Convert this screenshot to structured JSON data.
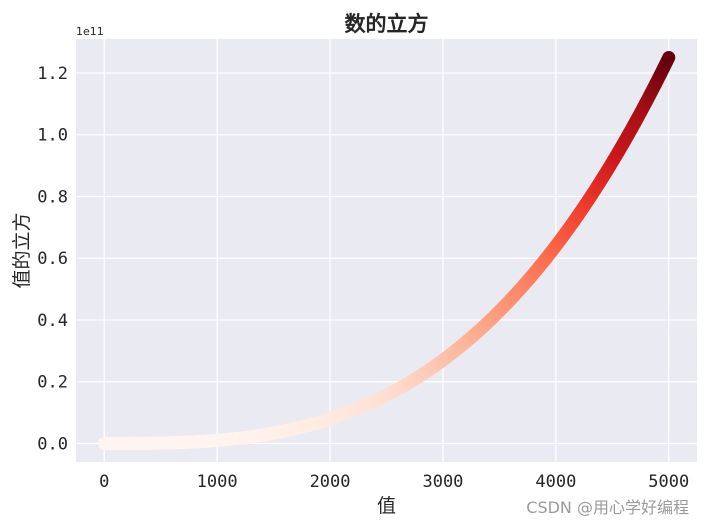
{
  "chart_data": {
    "type": "scatter",
    "title": "数的立方",
    "xlabel": "值",
    "ylabel": "值的立方",
    "y_offset_text": "1e11",
    "xlim": [
      -250,
      5250
    ],
    "ylim": [
      -0.06,
      1.31
    ],
    "y_scale_factor": 100000000000,
    "x_ticks": [
      0,
      1000,
      2000,
      3000,
      4000,
      5000
    ],
    "x_tick_labels": [
      "0",
      "1000",
      "2000",
      "3000",
      "4000",
      "5000"
    ],
    "y_ticks": [
      0.0,
      0.2,
      0.4,
      0.6,
      0.8,
      1.0,
      1.2
    ],
    "y_tick_labels": [
      "0.0",
      "0.2",
      "0.4",
      "0.6",
      "0.8",
      "1.0",
      "1.2"
    ],
    "series": [
      {
        "x_start": 1,
        "x_end": 5000,
        "function": "cube",
        "colormap": "Reds",
        "color_by": "y",
        "sample_x": [
          0,
          1000,
          2000,
          3000,
          4000,
          5000
        ],
        "sample_y": [
          0,
          1000000000,
          8000000000,
          27000000000,
          64000000000,
          125000000000
        ]
      }
    ],
    "grid": true,
    "background": "#eaeaf2",
    "grid_color": "#ffffff",
    "colormap_stops": [
      "#fff5f0",
      "#fee0d2",
      "#fcbba1",
      "#fc9272",
      "#fb6a4a",
      "#ef3b2c",
      "#cb181d",
      "#a50f15",
      "#67000d"
    ]
  },
  "watermark": "CSDN @用心学好编程"
}
